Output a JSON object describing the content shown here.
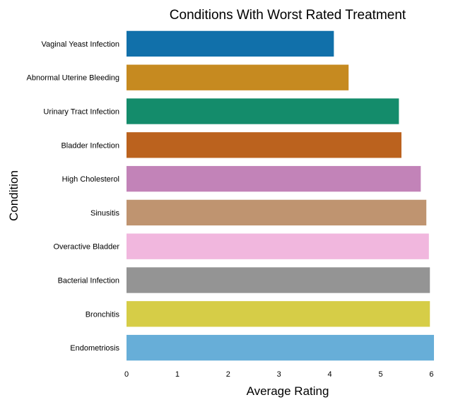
{
  "chart_data": {
    "type": "bar",
    "orientation": "horizontal",
    "title": "Conditions With Worst Rated Treatment",
    "xlabel": "Average Rating",
    "ylabel": "Condition",
    "xlim": [
      0,
      6.05
    ],
    "xticks": [
      0,
      1,
      2,
      3,
      4,
      5,
      6
    ],
    "grid": false,
    "categories": [
      "Vaginal Yeast Infection",
      "Abnormal Uterine Bleeding",
      "Urinary Tract Infection",
      "Bladder Infection",
      "High Cholesterol",
      "Sinusitis",
      "Overactive Bladder",
      "Bacterial Infection",
      "Bronchitis",
      "Endometriosis"
    ],
    "values": [
      4.08,
      4.37,
      5.36,
      5.41,
      5.79,
      5.9,
      5.95,
      5.97,
      5.97,
      6.05
    ],
    "colors": [
      "#1170aa",
      "#c68a20",
      "#148c6b",
      "#bb621e",
      "#c283b8",
      "#bf9470",
      "#f1b7de",
      "#949494",
      "#d6cd47",
      "#67aed8"
    ]
  }
}
